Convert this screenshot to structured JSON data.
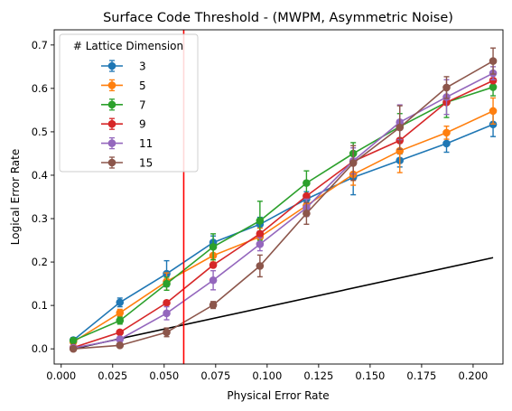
{
  "chart_data": {
    "type": "line",
    "title": "Surface Code Threshold - (MWPM, Asymmetric Noise)",
    "xlabel": "Physical Error Rate",
    "ylabel": "Logical Error Rate",
    "xlim": [
      -0.0034,
      0.2145
    ],
    "ylim": [
      -0.035,
      0.735
    ],
    "xticks": [
      0.0,
      0.025,
      0.05,
      0.075,
      0.1,
      0.125,
      0.15,
      0.175,
      0.2
    ],
    "xtick_labels": [
      "0.000",
      "0.025",
      "0.050",
      "0.075",
      "0.100",
      "0.125",
      "0.150",
      "0.175",
      "0.200"
    ],
    "yticks": [
      0.0,
      0.1,
      0.2,
      0.3,
      0.4,
      0.5,
      0.6,
      0.7
    ],
    "ytick_labels": [
      "0.0",
      "0.1",
      "0.2",
      "0.3",
      "0.4",
      "0.5",
      "0.6",
      "0.7"
    ],
    "grid": false,
    "legend": {
      "title": "# Lattice Dimension",
      "placement": "top-left"
    },
    "x": [
      0.0059,
      0.0285,
      0.0512,
      0.0738,
      0.0965,
      0.1191,
      0.1418,
      0.1644,
      0.1871,
      0.2097
    ],
    "series": [
      {
        "name": "3",
        "color": "#1f77b4",
        "values": [
          0.02,
          0.107,
          0.173,
          0.245,
          0.287,
          0.345,
          0.395,
          0.434,
          0.473,
          0.517
        ],
        "errors": [
          0.006,
          0.01,
          0.03,
          0.015,
          0.016,
          0.017,
          0.04,
          0.015,
          0.02,
          0.028
        ]
      },
      {
        "name": "5",
        "color": "#ff7f0e",
        "values": [
          0.016,
          0.083,
          0.155,
          0.215,
          0.258,
          0.33,
          0.402,
          0.456,
          0.498,
          0.548
        ],
        "errors": [
          0.006,
          0.008,
          0.02,
          0.015,
          0.02,
          0.02,
          0.025,
          0.05,
          0.015,
          0.03
        ]
      },
      {
        "name": "7",
        "color": "#2ca02c",
        "values": [
          0.019,
          0.065,
          0.15,
          0.235,
          0.295,
          0.382,
          0.45,
          0.512,
          0.568,
          0.603
        ],
        "errors": [
          0.006,
          0.008,
          0.015,
          0.03,
          0.045,
          0.028,
          0.025,
          0.03,
          0.035,
          0.02
        ]
      },
      {
        "name": "9",
        "color": "#d62728",
        "values": [
          0.003,
          0.038,
          0.106,
          0.193,
          0.265,
          0.352,
          0.432,
          0.48,
          0.568,
          0.618
        ]
      },
      {
        "name": "11",
        "color": "#9467bd",
        "values": [
          0.002,
          0.022,
          0.082,
          0.158,
          0.241,
          0.325,
          0.433,
          0.522,
          0.58,
          0.635
        ],
        "errors": [
          0.003,
          0.006,
          0.015,
          0.022,
          0.015,
          0.02,
          0.03,
          0.04,
          0.04,
          0.015
        ]
      },
      {
        "name": "15",
        "color": "#8c564b",
        "values": [
          0.0,
          0.008,
          0.038,
          0.101,
          0.191,
          0.312,
          0.428,
          0.51,
          0.602,
          0.663
        ],
        "errors": [
          0.003,
          0.004,
          0.01,
          0.008,
          0.025,
          0.025,
          0.04,
          0.05,
          0.025,
          0.03
        ]
      }
    ],
    "reference_line": {
      "color": "#000000",
      "x": [
        0.0059,
        0.2097
      ],
      "y": [
        0.0,
        0.21
      ]
    },
    "threshold_line": {
      "color": "#ff0000",
      "x": 0.0595
    }
  }
}
